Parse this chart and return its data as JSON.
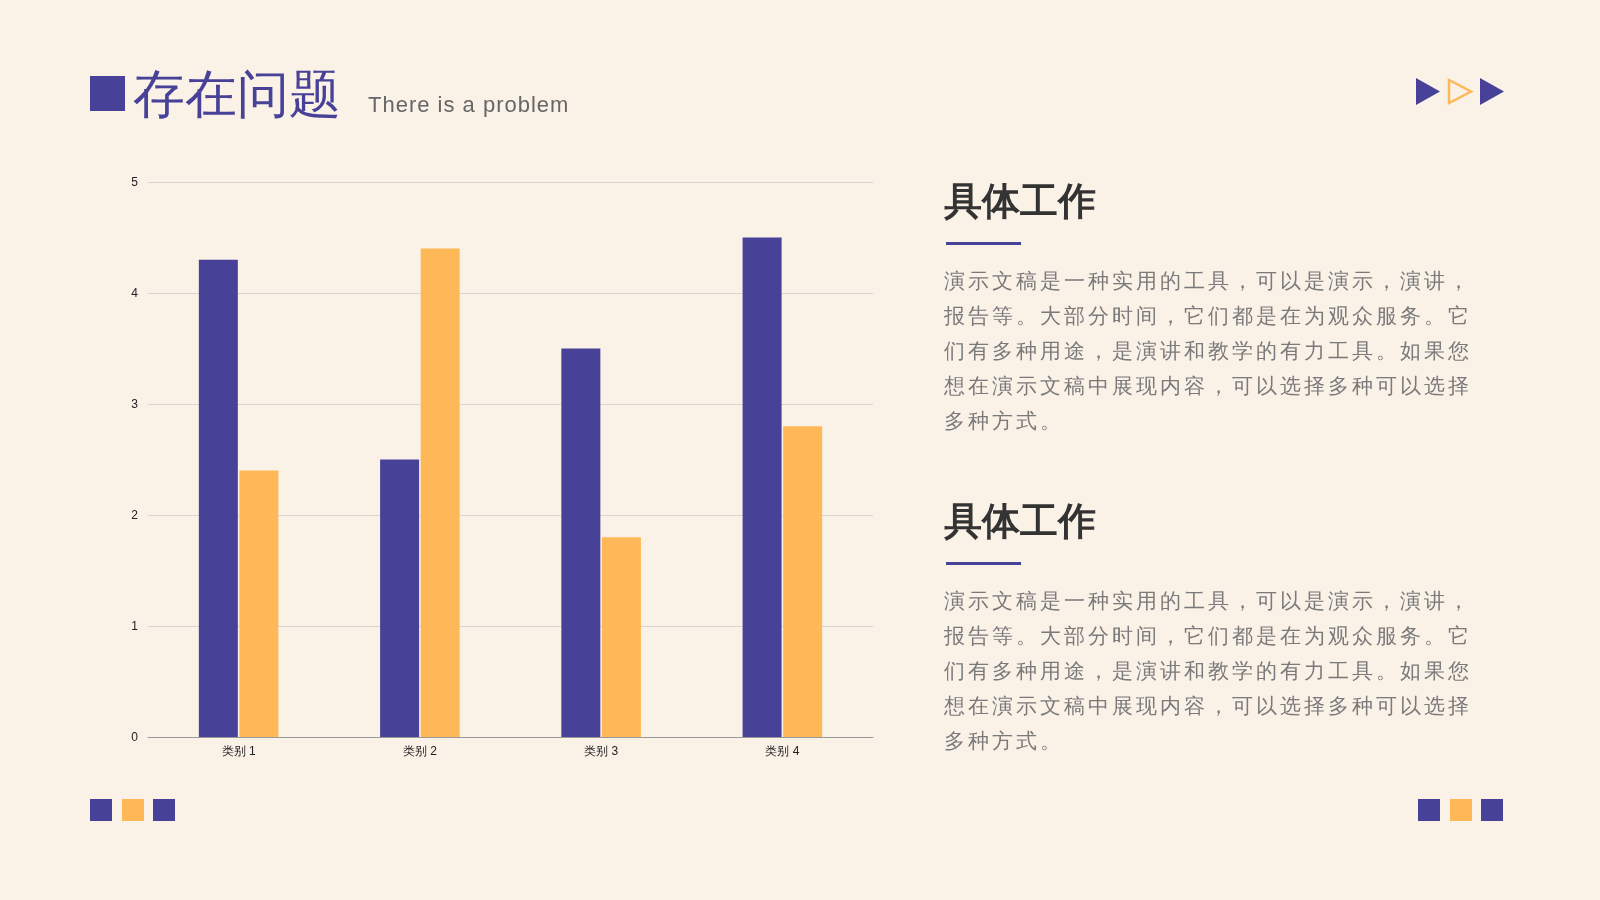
{
  "chart_data": {
    "type": "bar",
    "title": "存在问题",
    "subtitle": "There is a problem",
    "categories": [
      "类别 1",
      "类别 2",
      "类别 3",
      "类别 4"
    ],
    "series": [
      {
        "color": "#474297",
        "values": [
          4.3,
          2.5,
          3.5,
          4.5
        ]
      },
      {
        "color": "#ffb857",
        "values": [
          2.4,
          4.4,
          1.8,
          2.8
        ]
      }
    ],
    "ylim": [
      0,
      5
    ],
    "yticks": [
      0,
      1,
      2,
      3,
      4,
      5
    ],
    "grid": "y",
    "annotations": [
      "具体工作",
      "演示文稿是一种实用的工具，可以是演示，演讲，报告等。大部分时间，它们都是在为观众服务。它们有多种用途，是演讲和教学的有力工具。如果您想在演示文稿中展现内容，可以选择多种可以选择多种方式。",
      "具体工作",
      "演示文稿是一种实用的工具，可以是演示，演讲，报告等。大部分时间，它们都是在为观众服务。它们有多种用途，是演讲和教学的有力工具。如果您想在演示文稿中展现内容，可以选择多种可以选择多种方式。"
    ]
  }
}
